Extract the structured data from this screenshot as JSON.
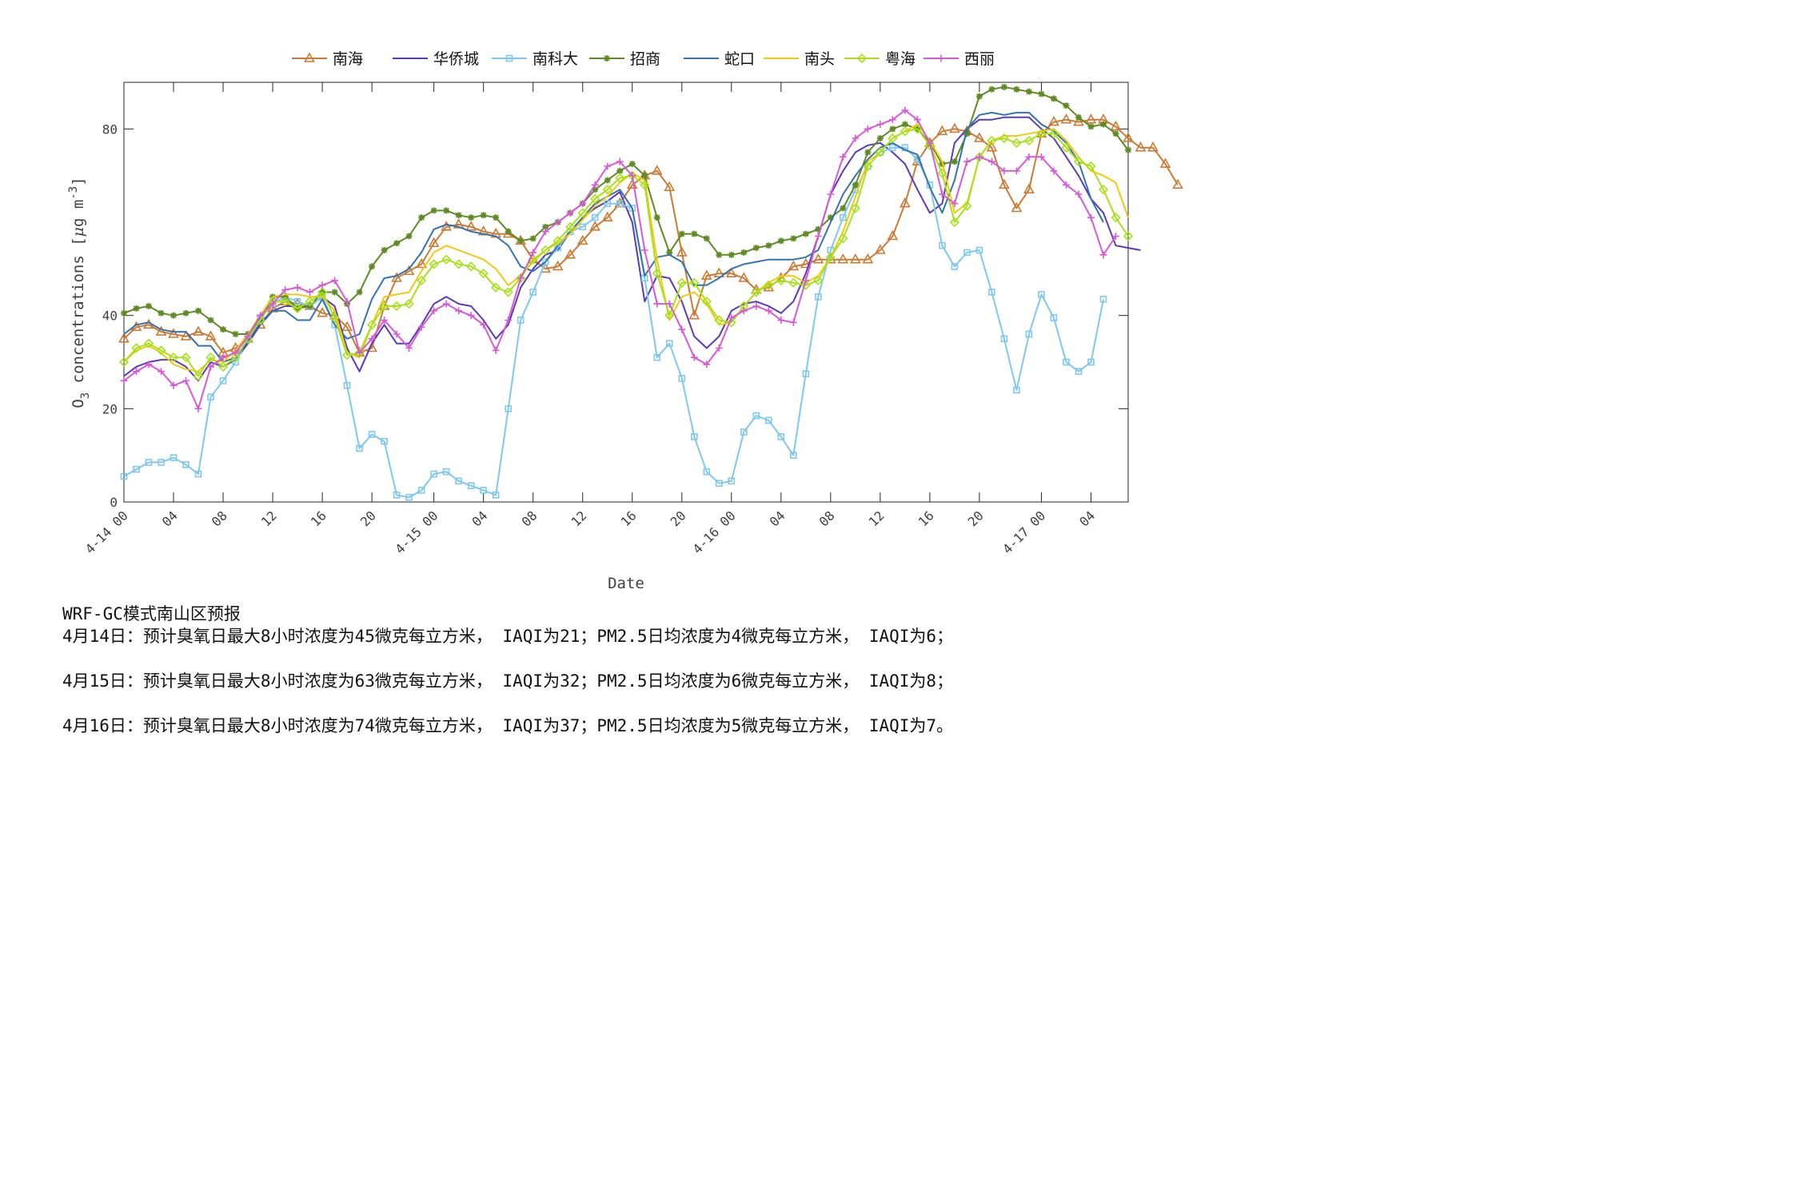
{
  "chart_data": {
    "type": "line",
    "ylabel": "O<sub>3</sub> concentrations [μg m<sup>-3</sup>]",
    "ylabel_parts": [
      "O",
      "3",
      " concentrations [",
      "μ",
      "g m",
      "-3",
      "]"
    ],
    "xlabel": "Date",
    "ylim": [
      0,
      90
    ],
    "yticks": [
      0,
      20,
      40,
      80
    ],
    "xlim": [
      0,
      81
    ],
    "xticks": [
      {
        "at": 0,
        "label": "4-14 00"
      },
      {
        "at": 4,
        "label": "04"
      },
      {
        "at": 8,
        "label": "08"
      },
      {
        "at": 12,
        "label": "12"
      },
      {
        "at": 16,
        "label": "16"
      },
      {
        "at": 20,
        "label": "20"
      },
      {
        "at": 25,
        "label": "4-15 00"
      },
      {
        "at": 29,
        "label": "04"
      },
      {
        "at": 33,
        "label": "08"
      },
      {
        "at": 37,
        "label": "12"
      },
      {
        "at": 41,
        "label": "16"
      },
      {
        "at": 45,
        "label": "20"
      },
      {
        "at": 49,
        "label": "4-16 00"
      },
      {
        "at": 53,
        "label": "04"
      },
      {
        "at": 57,
        "label": "08"
      },
      {
        "at": 61,
        "label": "12"
      },
      {
        "at": 65,
        "label": "16"
      },
      {
        "at": 69,
        "label": "20"
      },
      {
        "at": 74,
        "label": "4-17 00"
      },
      {
        "at": 78,
        "label": "04"
      }
    ],
    "legend_position": "top",
    "series": [
      {
        "name": "南海",
        "color": "#CC7A33",
        "marker": "triangle",
        "values": [
          35,
          37.5,
          38,
          36.5,
          36,
          35.5,
          36.5,
          35.5,
          32,
          33,
          35,
          38,
          41.5,
          43,
          42.5,
          42,
          40.5,
          40,
          37.5,
          32,
          33,
          42,
          48,
          49.5,
          51,
          55.5,
          59,
          59.5,
          59,
          58,
          57.5,
          57.5,
          56,
          52,
          50,
          50.5,
          53,
          56,
          59,
          61,
          64,
          68,
          70,
          71,
          67.5,
          53.5,
          40,
          48.5,
          49,
          49,
          48,
          45.5,
          46,
          48,
          50.5,
          51,
          52,
          52,
          52,
          52,
          52,
          54,
          57,
          64,
          73,
          77,
          79.5,
          80,
          79.5,
          78,
          76,
          68,
          63,
          67,
          79,
          81.5,
          82,
          81.5,
          82,
          82,
          80.5,
          78,
          76,
          76,
          72.5,
          68
        ]
      },
      {
        "name": "华侨城",
        "color": "#5A3ABA",
        "marker": "none",
        "values": [
          27,
          29,
          30,
          30.5,
          30.5,
          29,
          26,
          30,
          29,
          30.5,
          34,
          38,
          41,
          42,
          42,
          42,
          44,
          42,
          33,
          28,
          34,
          38,
          34,
          34,
          38,
          42.5,
          44,
          42.5,
          42,
          39,
          35,
          38,
          46,
          50,
          53,
          54,
          58,
          61,
          63,
          64.5,
          66.5,
          60,
          43,
          48.5,
          48,
          43,
          35.5,
          33,
          35.5,
          41,
          42.5,
          43,
          42,
          40.5,
          43,
          49,
          57,
          66,
          71,
          75,
          76.5,
          77,
          75,
          72.5,
          67,
          62,
          64,
          77,
          80,
          82,
          82,
          82.5,
          82.5,
          82.5,
          80,
          78,
          74,
          70,
          65,
          62,
          55,
          54.5,
          54
        ]
      },
      {
        "name": "南科大",
        "color": "#7EC8F0",
        "marker": "square",
        "values": [
          5.5,
          7,
          8.5,
          8.5,
          9.5,
          8,
          6,
          22.5,
          26,
          30,
          35,
          39.5,
          42.5,
          44,
          43,
          42,
          44,
          38,
          25,
          11.5,
          14.5,
          13,
          1.5,
          1,
          2.5,
          6,
          6.5,
          4.5,
          3.5,
          2.5,
          1.5,
          20,
          39,
          45,
          51.5,
          54.5,
          58,
          59,
          61,
          64,
          64,
          63,
          48,
          31,
          34,
          26.5,
          14,
          6.5,
          4,
          4.5,
          15,
          18.5,
          17.5,
          14,
          10,
          27.5,
          44,
          54,
          61,
          67,
          72,
          75,
          76,
          76,
          73.5,
          68,
          55,
          50.5,
          53.5,
          54,
          45,
          35,
          24,
          36,
          44.5,
          39.5,
          30,
          28,
          30,
          43.5
        ]
      },
      {
        "name": "招商",
        "color": "#5E8A22",
        "marker": "star",
        "values": [
          40.5,
          41.5,
          42,
          40.5,
          40,
          40.5,
          41,
          39,
          37,
          36,
          36,
          39,
          44,
          44,
          41.5,
          42,
          45,
          45,
          42.5,
          45,
          50.5,
          54,
          55.5,
          57,
          61,
          62.5,
          62.5,
          61.5,
          61,
          61.5,
          61,
          58,
          56,
          56.5,
          59,
          60,
          62,
          64,
          67,
          69,
          71,
          72.5,
          70,
          61,
          53.5,
          57.5,
          57.5,
          56.5,
          53,
          53,
          53.5,
          54.5,
          55,
          56,
          56.5,
          57.5,
          58.5,
          61,
          63,
          68,
          75,
          78,
          80,
          81,
          80,
          77,
          72.5,
          73,
          79,
          87,
          88.5,
          89,
          88.5,
          88,
          87.5,
          86.5,
          85,
          82.5,
          80.5,
          81,
          79,
          75.5
        ]
      },
      {
        "name": "蛇口",
        "color": "#3472B0",
        "marker": "none",
        "values": [
          36,
          38,
          38.5,
          37,
          36.5,
          36.5,
          33.5,
          33.5,
          30,
          31,
          34.5,
          38.5,
          41,
          41,
          39,
          39,
          43.5,
          38,
          35,
          36,
          43.5,
          48,
          48.5,
          50,
          53.5,
          58.5,
          59.5,
          59,
          58,
          57.5,
          57,
          55,
          50.5,
          49.5,
          51.5,
          55,
          58,
          61,
          64,
          65.5,
          67,
          63,
          48.5,
          52.5,
          53,
          51.5,
          46.5,
          46.5,
          48,
          50,
          51,
          51.5,
          52,
          52,
          52,
          52.5,
          54,
          60,
          66,
          70,
          73.5,
          76,
          77,
          75.5,
          74.5,
          67.5,
          62,
          69,
          80,
          83,
          83.5,
          83,
          83.5,
          83.5,
          81,
          79.5,
          77,
          73,
          65,
          60
        ]
      },
      {
        "name": "南头",
        "color": "#F2C812",
        "marker": "none",
        "values": [
          30,
          32.5,
          33.5,
          32,
          29.5,
          28.5,
          28,
          30.5,
          30,
          32.5,
          36,
          40,
          44,
          44.5,
          44.5,
          44,
          44,
          41,
          32,
          31,
          38,
          44,
          44.5,
          45,
          49.5,
          53.5,
          55,
          54,
          53,
          52,
          50,
          46.5,
          48.5,
          51.5,
          54,
          55.5,
          57.5,
          60.5,
          63.5,
          65.5,
          68.5,
          70.5,
          69,
          52,
          39,
          44,
          45,
          42.5,
          38,
          38.5,
          42,
          45,
          47,
          48.5,
          48.5,
          47,
          48.5,
          52.5,
          58,
          65.5,
          73,
          75,
          78,
          79.5,
          81,
          77.5,
          73,
          62,
          64,
          74,
          77.5,
          78.5,
          78.5,
          79,
          79.5,
          80,
          77.5,
          74,
          71,
          70,
          68.5,
          61
        ]
      },
      {
        "name": "粤海",
        "color": "#A8E01A",
        "marker": "diamond",
        "values": [
          30,
          33,
          34,
          32.5,
          31,
          31,
          27,
          31,
          29,
          31,
          35,
          39,
          43,
          43,
          41.5,
          43,
          45,
          39.5,
          31.5,
          32,
          38,
          42,
          42,
          42.5,
          47.5,
          51,
          52,
          51,
          50.5,
          49,
          46,
          45,
          48,
          52,
          54,
          56,
          59,
          62,
          65,
          67,
          69.5,
          70,
          68,
          49,
          40,
          47,
          47,
          43,
          39,
          38.5,
          42,
          45,
          46.5,
          47.5,
          47,
          46.5,
          47.5,
          52.5,
          56.5,
          63,
          72,
          75,
          78,
          79.5,
          80,
          76.5,
          70.5,
          60,
          63.5,
          74,
          77.5,
          78,
          77,
          77.5,
          79,
          79,
          76,
          73,
          72,
          67,
          61,
          57
        ]
      },
      {
        "name": "西丽",
        "color": "#D65AD6",
        "marker": "plus",
        "values": [
          26,
          28,
          29.5,
          28,
          25,
          26,
          20,
          29,
          31,
          32,
          35.5,
          40,
          42.5,
          45.5,
          46,
          45,
          46.5,
          47.5,
          43,
          32,
          35,
          39,
          36,
          33,
          37.5,
          41,
          42.5,
          41,
          40,
          38,
          32.5,
          39,
          48,
          53.5,
          58,
          60,
          62,
          64,
          68,
          72,
          73,
          70,
          54,
          42.5,
          42.5,
          37,
          31,
          29.5,
          33,
          39.5,
          41,
          42,
          41,
          39,
          38.5,
          47.5,
          57,
          66,
          74,
          78,
          80,
          81,
          82,
          84,
          82,
          77,
          66,
          64,
          73,
          74,
          73,
          71,
          71,
          74,
          74,
          71,
          68,
          66,
          61,
          53,
          57
        ]
      }
    ]
  },
  "notes": {
    "title": "WRF-GC模式南山区预报",
    "lines": [
      "4月14日：预计臭氧日最大8小时浓度为45微克每立方米， IAQI为21；PM2.5日均浓度为4微克每立方米， IAQI为6；",
      "4月15日：预计臭氧日最大8小时浓度为63微克每立方米， IAQI为32；PM2.5日均浓度为6微克每立方米， IAQI为8；",
      "4月16日：预计臭氧日最大8小时浓度为74微克每立方米， IAQI为37；PM2.5日均浓度为5微克每立方米， IAQI为7。"
    ]
  }
}
